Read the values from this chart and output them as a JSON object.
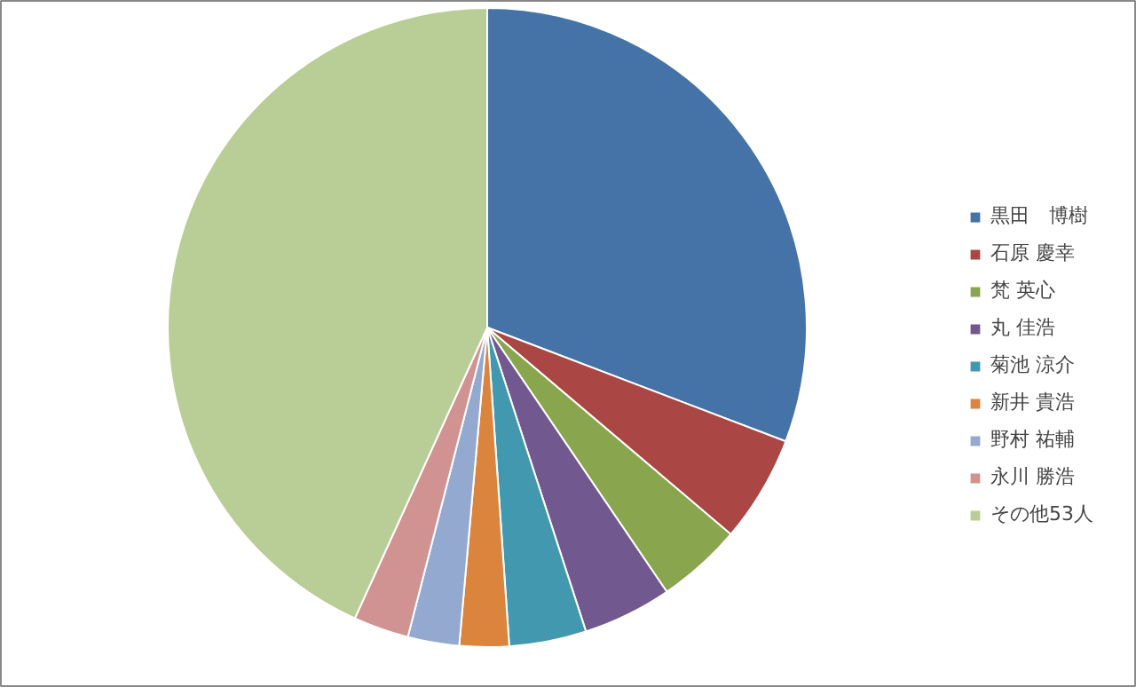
{
  "chart_data": {
    "type": "pie",
    "categories": [
      "黒田　博樹",
      "石原 慶幸",
      "梵 英心",
      "丸 佳浩",
      "菊池 涼介",
      "新井 貴浩",
      "野村 祐輔",
      "永川 勝浩",
      "その他53人"
    ],
    "values": [
      30.8,
      5.4,
      4.3,
      4.5,
      3.9,
      2.5,
      2.6,
      2.8,
      43.2
    ],
    "colors": [
      "#4572a7",
      "#aa4643",
      "#89a54e",
      "#71588f",
      "#4198af",
      "#db843d",
      "#93a9cf",
      "#d19392",
      "#b9cd96"
    ],
    "legend": "right"
  }
}
